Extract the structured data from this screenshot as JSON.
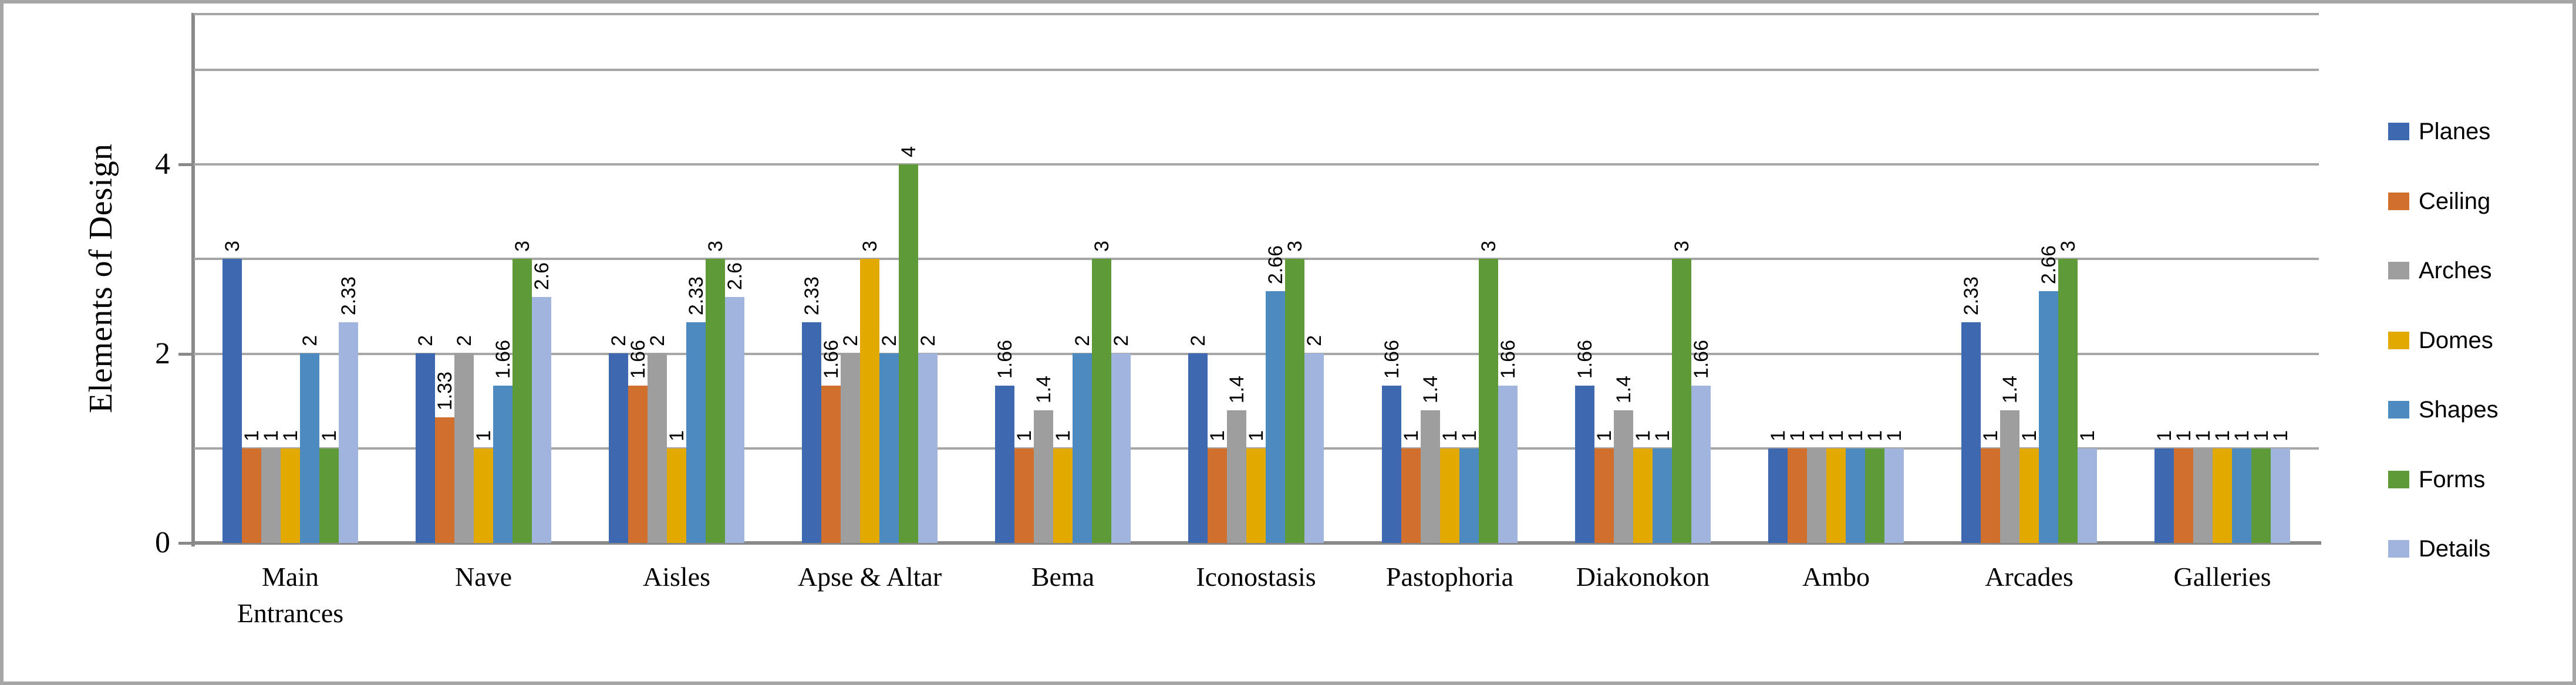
{
  "figure": {
    "y_axis_title": "Elements of Design"
  },
  "chart_data": {
    "type": "bar",
    "title": "",
    "xlabel": "",
    "ylabel": "Elements of Design",
    "ylim": [
      0,
      5.6
    ],
    "yticks": [
      0,
      2,
      4
    ],
    "gridlines": [
      1,
      2,
      3,
      4,
      5
    ],
    "grid": true,
    "legend_position": "right",
    "data_labels": "rotated-vertical-above-bars",
    "categories": [
      "Main\nEntrances",
      "Nave",
      "Aisles",
      "Apse & Altar",
      "Bema",
      "Iconostasis",
      "Pastophoria",
      "Diakonokon",
      "Ambo",
      "Arcades",
      "Galleries"
    ],
    "series": [
      {
        "name": "Planes",
        "color": "#3E68B0",
        "values": [
          3,
          2,
          2,
          2.33,
          1.66,
          2,
          1.66,
          1.66,
          1,
          2.33,
          1
        ]
      },
      {
        "name": "Ceiling",
        "color": "#D0702C",
        "values": [
          1,
          1.33,
          1.66,
          1.66,
          1,
          1,
          1,
          1,
          1,
          1,
          1
        ]
      },
      {
        "name": "Arches",
        "color": "#9E9E9E",
        "values": [
          1,
          2,
          2,
          2,
          1.4,
          1.4,
          1.4,
          1.4,
          1,
          1.4,
          1
        ]
      },
      {
        "name": "Domes",
        "color": "#E2A900",
        "values": [
          1,
          1,
          1,
          3,
          1,
          1,
          1,
          1,
          1,
          1,
          1
        ]
      },
      {
        "name": "Shapes",
        "color": "#4D8AC0",
        "values": [
          2,
          1.66,
          2.33,
          2,
          2,
          2.66,
          1,
          1,
          1,
          2.66,
          1
        ]
      },
      {
        "name": "Forms",
        "color": "#5E9A38",
        "values": [
          1,
          3,
          3,
          4,
          3,
          3,
          3,
          3,
          1,
          3,
          1
        ]
      },
      {
        "name": "Details",
        "color": "#A0B4DD",
        "values": [
          2.33,
          2.6,
          2.6,
          2,
          2,
          2,
          1.66,
          1.66,
          1,
          1,
          1
        ]
      }
    ]
  },
  "style_colors": {
    "gridline": "#a6a6a6",
    "axis": "#898989",
    "frame_border": "#a6a6a6",
    "text": "#000000"
  }
}
